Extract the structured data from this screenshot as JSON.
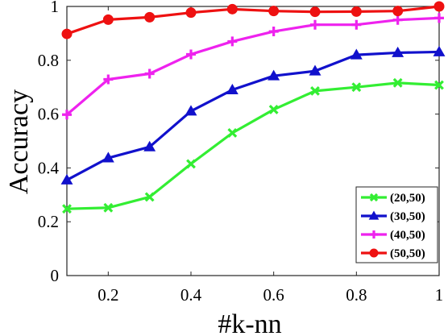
{
  "chart_data": {
    "type": "line",
    "xlabel": "#k-nn",
    "ylabel": "Accuracy",
    "xlim": [
      0.1,
      1.0
    ],
    "ylim": [
      0,
      1
    ],
    "xticks": [
      0.2,
      0.4,
      0.6,
      0.8,
      1
    ],
    "xtick_labels": [
      "0.2",
      "0.4",
      "0.6",
      "0.8",
      "1"
    ],
    "yticks": [
      0,
      0.2,
      0.4,
      0.6,
      0.8,
      1
    ],
    "ytick_labels": [
      "0",
      "0.2",
      "0.4",
      "0.6",
      "0.8",
      "1"
    ],
    "grid": false,
    "legend_position": "bottom-right",
    "x": [
      0.1,
      0.2,
      0.3,
      0.4,
      0.5,
      0.6,
      0.7,
      0.8,
      0.9,
      1.0
    ],
    "series": [
      {
        "name": "(20,50)",
        "color": "#33ee33",
        "marker": "x",
        "values": [
          0.248,
          0.252,
          0.292,
          0.415,
          0.53,
          0.617,
          0.686,
          0.7,
          0.716,
          0.708
        ]
      },
      {
        "name": "(30,50)",
        "color": "#1111cc",
        "marker": "triangle",
        "values": [
          0.355,
          0.437,
          0.478,
          0.611,
          0.69,
          0.742,
          0.76,
          0.82,
          0.828,
          0.831
        ]
      },
      {
        "name": "(40,50)",
        "color": "#ee22ee",
        "marker": "plus",
        "values": [
          0.598,
          0.729,
          0.75,
          0.822,
          0.87,
          0.907,
          0.932,
          0.932,
          0.95,
          0.957
        ]
      },
      {
        "name": "(50,50)",
        "color": "#ee1111",
        "marker": "circle",
        "values": [
          0.898,
          0.951,
          0.96,
          0.977,
          0.99,
          0.983,
          0.98,
          0.981,
          0.983,
          1.0
        ]
      }
    ]
  }
}
